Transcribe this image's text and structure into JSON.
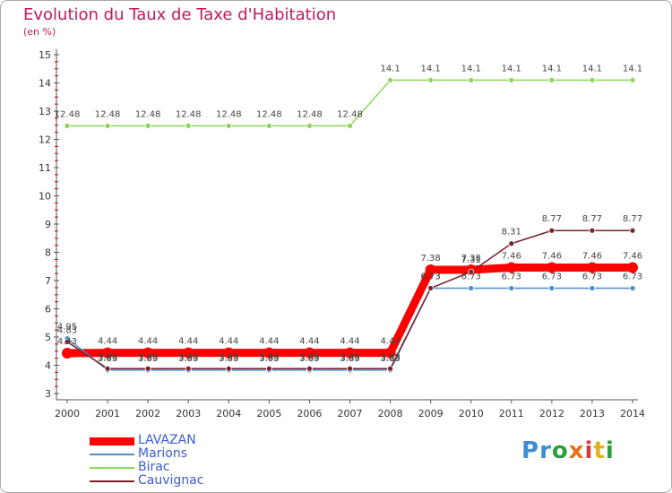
{
  "header": {
    "title": "Evolution du Taux de Taxe d'Habitation",
    "subtitle": "(en %)"
  },
  "brand": {
    "logo_text": "Proxiti",
    "logo_letters": [
      "P",
      "r",
      "o",
      "x",
      "i",
      "t",
      "i"
    ],
    "logo_colors": [
      "#3b8fd6",
      "#3b8fd6",
      "#2e9e3e",
      "#e8711c",
      "#d63a3a",
      "#e0b21b",
      "#2e9e3e"
    ]
  },
  "chart_data": {
    "type": "line",
    "title": "Evolution du Taux de Taxe d'Habitation",
    "subtitle": "(en %)",
    "xlabel": "",
    "ylabel": "",
    "ylim": [
      3,
      15
    ],
    "yticks": [
      "3",
      "4",
      "5",
      "6",
      "7",
      "8",
      "9",
      "10",
      "11",
      "12",
      "13",
      "14",
      "15"
    ],
    "grid": false,
    "legend_position": "bottom-left",
    "x": [
      "2000",
      "2001",
      "2002",
      "2003",
      "2004",
      "2005",
      "2006",
      "2007",
      "2008",
      "2009",
      "2010",
      "2011",
      "2012",
      "2013",
      "2014"
    ],
    "series": [
      {
        "name": "LAVAZAN",
        "color": "#ff0000",
        "values": [
          4.43,
          4.44,
          4.44,
          4.44,
          4.44,
          4.44,
          4.44,
          4.44,
          4.44,
          7.38,
          7.38,
          7.46,
          7.46,
          7.46,
          7.46
        ],
        "labels": [
          "4.43",
          "4.44",
          "4.44",
          "4.44",
          "4.44",
          "4.44",
          "4.44",
          "4.44",
          "4.44",
          "7.38",
          "7.38",
          "7.46",
          "7.46",
          "7.46",
          "7.46"
        ]
      },
      {
        "name": "Marions",
        "color": "#4a90c8",
        "values": [
          4.95,
          3.83,
          3.83,
          3.83,
          3.83,
          3.83,
          3.83,
          3.83,
          3.83,
          6.73,
          6.73,
          6.73,
          6.73,
          6.73,
          6.73
        ],
        "labels": [
          "4.95",
          "3.83",
          "3.83",
          "3.83",
          "3.83",
          "3.83",
          "3.83",
          "3.83",
          "3.83",
          "6.73",
          "6.73",
          "6.73",
          "6.73",
          "6.73",
          "6.73"
        ]
      },
      {
        "name": "Birac",
        "color": "#8ad65a",
        "values": [
          12.48,
          12.48,
          12.48,
          12.48,
          12.48,
          12.48,
          12.48,
          12.48,
          14.1,
          14.1,
          14.1,
          14.1,
          14.1,
          14.1,
          14.1
        ],
        "labels": [
          "12.48",
          "12.48",
          "12.48",
          "12.48",
          "12.48",
          "12.48",
          "12.48",
          "12.48",
          "14.1",
          "14.1",
          "14.1",
          "14.1",
          "14.1",
          "14.1",
          "14.1"
        ]
      },
      {
        "name": "Cauvignac",
        "color": "#7a1f2b",
        "values": [
          4.83,
          3.88,
          3.88,
          3.88,
          3.88,
          3.88,
          3.88,
          3.88,
          3.88,
          6.73,
          7.31,
          8.31,
          8.77,
          8.77,
          8.77
        ],
        "labels": [
          "4.83",
          "3.88",
          "3.88",
          "3.88",
          "3.88",
          "3.88",
          "3.88",
          "3.88",
          "3.88",
          "6.73",
          "7.31",
          "8.31",
          "8.77",
          "8.77",
          "8.77"
        ]
      }
    ]
  }
}
